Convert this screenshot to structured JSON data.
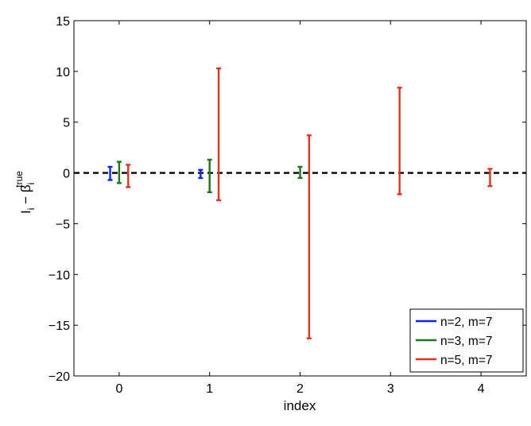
{
  "chart_data": {
    "type": "errorbar",
    "xlabel": "index",
    "ylabel": {
      "main": "I",
      "sub1": "i",
      "dash": " − ",
      "beta": "β",
      "sub2": "i",
      "sup": "true"
    },
    "xlim": [
      -0.5,
      4.5
    ],
    "ylim": [
      -20,
      15
    ],
    "x_ticks": [
      "0",
      "1",
      "2",
      "3",
      "4"
    ],
    "y_ticks": [
      "15",
      "10",
      "5",
      "0",
      "−5",
      "−10",
      "−15",
      "−20"
    ],
    "reference_line": {
      "y": 0,
      "style": "dashed",
      "color": "#000000"
    },
    "legend_position": "bottom-right",
    "series": [
      {
        "name": "n=2, m=7",
        "color": "#0b24fb",
        "points": [
          {
            "x": -0.1,
            "low": -0.7,
            "high": 0.6
          },
          {
            "x": 0.9,
            "low": -0.5,
            "high": 0.3
          }
        ]
      },
      {
        "name": "n=3, m=7",
        "color": "#1a7a1a",
        "points": [
          {
            "x": 0.0,
            "low": -1.0,
            "high": 1.1
          },
          {
            "x": 1.0,
            "low": -1.9,
            "high": 1.3
          },
          {
            "x": 2.0,
            "low": -0.5,
            "high": 0.6
          }
        ]
      },
      {
        "name": "n=5, m=7",
        "color": "#e8301e",
        "points": [
          {
            "x": 0.1,
            "low": -1.4,
            "high": 0.8
          },
          {
            "x": 1.1,
            "low": -2.7,
            "high": 10.3
          },
          {
            "x": 2.1,
            "low": -16.3,
            "high": 3.7
          },
          {
            "x": 3.1,
            "low": -2.1,
            "high": 8.4
          },
          {
            "x": 4.1,
            "low": -1.3,
            "high": 0.4
          }
        ]
      }
    ]
  }
}
